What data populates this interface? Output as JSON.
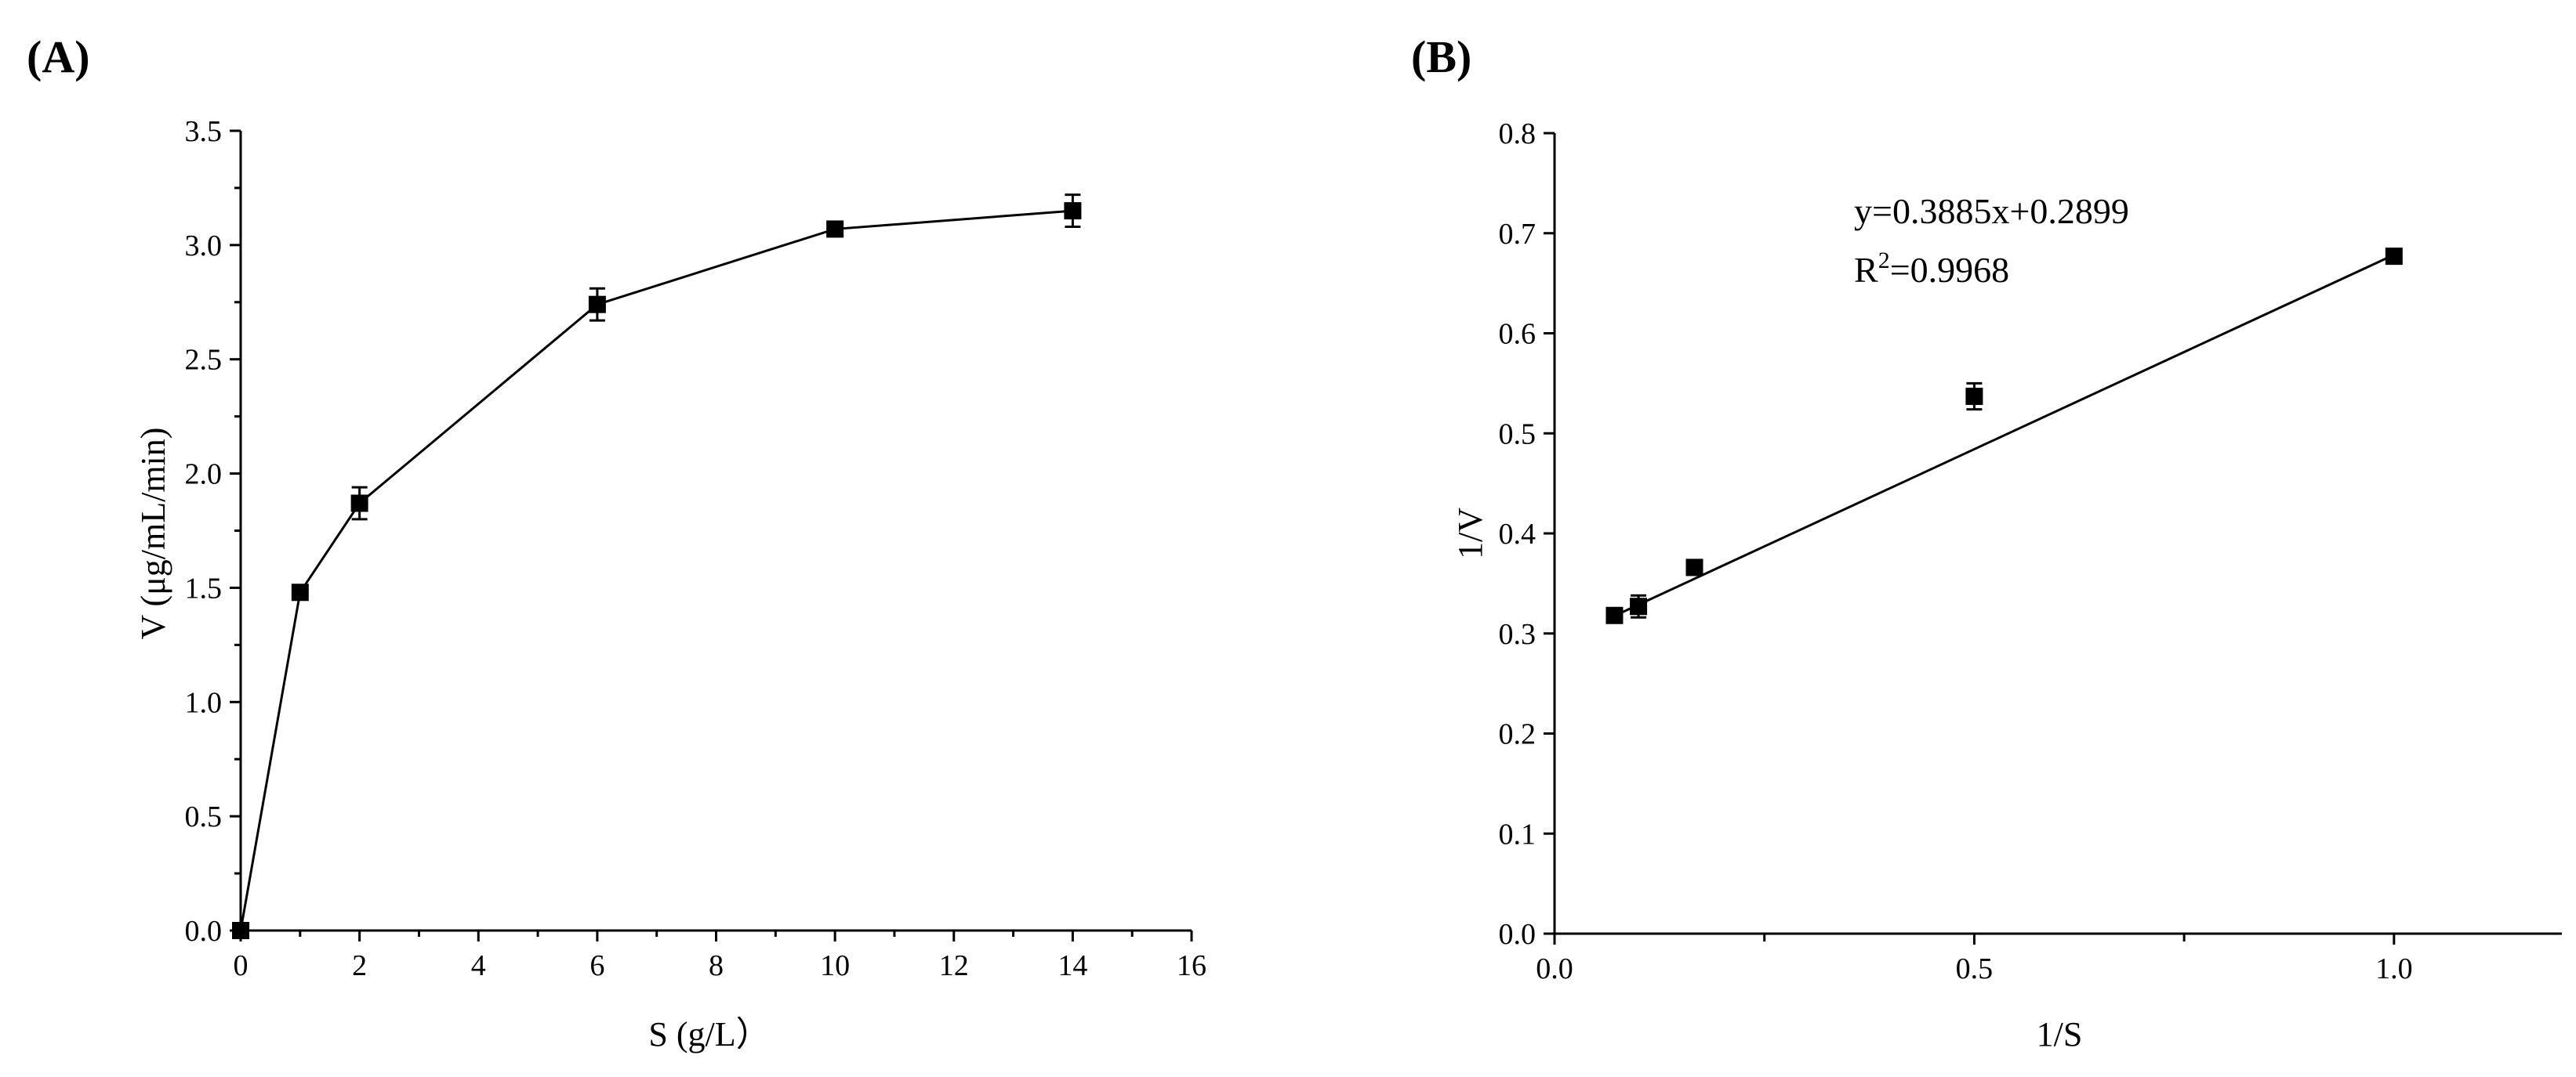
{
  "chart_data": [
    {
      "type": "line",
      "panel_label": "(A)",
      "title": "",
      "xlabel": "S (g/L）",
      "ylabel": "V (μg/mL/min)",
      "xlim": [
        0,
        16
      ],
      "ylim": [
        0,
        3.5
      ],
      "xticks": [
        0,
        2,
        4,
        6,
        8,
        10,
        12,
        14,
        16
      ],
      "xtick_labels": [
        "0",
        "2",
        "4",
        "6",
        "8",
        "10",
        "12",
        "14",
        "16"
      ],
      "yticks": [
        0,
        0.5,
        1.0,
        1.5,
        2.0,
        2.5,
        3.0,
        3.5
      ],
      "ytick_labels": [
        "0.0",
        "0.5",
        "1.0",
        "1.5",
        "2.0",
        "2.5",
        "3.0",
        "3.5"
      ],
      "grid": false,
      "color": "#000000",
      "series": [
        {
          "x": [
            0,
            1,
            2,
            6,
            10,
            14
          ],
          "y": [
            0,
            1.48,
            1.87,
            2.74,
            3.07,
            3.15
          ],
          "err": [
            0,
            0.02,
            0.07,
            0.07,
            0.03,
            0.07
          ]
        }
      ]
    },
    {
      "type": "scatter",
      "panel_label": "(B)",
      "title": "",
      "xlabel": "1/S",
      "ylabel": "1/V",
      "xlim": [
        0,
        1.2
      ],
      "ylim": [
        0,
        0.8
      ],
      "xticks": [
        0,
        0.5,
        1.0
      ],
      "xtick_labels": [
        "0.0",
        "0.5",
        "1.0"
      ],
      "xminor_ticks": [
        0.25,
        0.75
      ],
      "yticks": [
        0,
        0.1,
        0.2,
        0.3,
        0.4,
        0.5,
        0.6,
        0.7,
        0.8
      ],
      "ytick_labels": [
        "0.0",
        "0.1",
        "0.2",
        "0.3",
        "0.4",
        "0.5",
        "0.6",
        "0.7",
        "0.8"
      ],
      "grid": false,
      "color": "#000000",
      "equation": "y=0.3885x+0.2899",
      "r2_prefix": "R",
      "r2_sup": "2",
      "r2_value": "=0.9968",
      "fit": {
        "slope": 0.3885,
        "intercept": 0.2899,
        "x_range": [
          0.0714,
          1.0
        ]
      },
      "series": [
        {
          "x": [
            0.0714,
            0.1,
            0.1667,
            0.5,
            1.0
          ],
          "y": [
            0.318,
            0.327,
            0.366,
            0.537,
            0.677
          ],
          "err": [
            0.006,
            0.011,
            0.005,
            0.013,
            0.004
          ]
        }
      ]
    }
  ]
}
